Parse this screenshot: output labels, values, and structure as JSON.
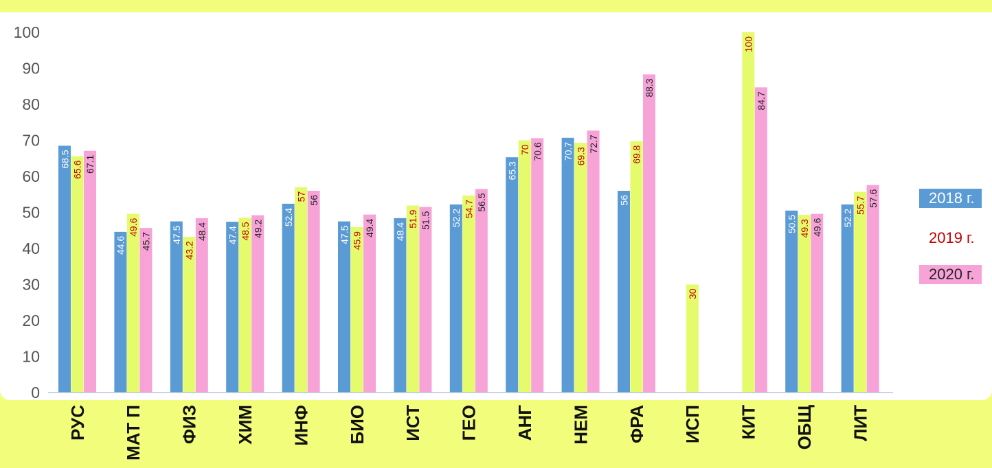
{
  "chart_data": {
    "type": "bar",
    "categories": [
      "РУС",
      "МАТ П",
      "ФИЗ",
      "ХИМ",
      "ИНФ",
      "БИО",
      "ИСТ",
      "ГЕО",
      "АНГ",
      "НЕМ",
      "ФРА",
      "ИСП",
      "КИТ",
      "ОБЩ",
      "ЛИТ"
    ],
    "series": [
      {
        "name": "2018 г.",
        "color": "#5b9bd5",
        "label_color": "#ffffff",
        "values": [
          68.5,
          44.6,
          47.5,
          47.4,
          52.4,
          47.5,
          48.4,
          52.2,
          65.3,
          70.7,
          56,
          null,
          null,
          50.5,
          52.2
        ]
      },
      {
        "name": "2019 г.",
        "color": "#e6fb6c",
        "label_color": "#c00000",
        "values": [
          65.6,
          49.6,
          43.2,
          48.5,
          57,
          45.9,
          51.9,
          54.7,
          70,
          69.3,
          69.8,
          30,
          100,
          49.3,
          55.7
        ]
      },
      {
        "name": "2020 г.",
        "color": "#f7a3d8",
        "label_color": "#222222",
        "values": [
          67.1,
          45.7,
          48.4,
          49.2,
          56,
          49.4,
          51.5,
          56.5,
          70.6,
          72.7,
          88.3,
          null,
          84.7,
          49.6,
          57.6
        ]
      }
    ],
    "ylim": [
      0,
      100
    ],
    "yticks": [
      0,
      10,
      20,
      30,
      40,
      50,
      60,
      70,
      80,
      90,
      100
    ],
    "grid": false,
    "data_labels": true,
    "legend_position": "right",
    "title": "",
    "xlabel": "",
    "ylabel": ""
  },
  "legend": {
    "items": [
      {
        "label": "2018 г."
      },
      {
        "label": "2019 г."
      },
      {
        "label": "2020 г."
      }
    ]
  }
}
